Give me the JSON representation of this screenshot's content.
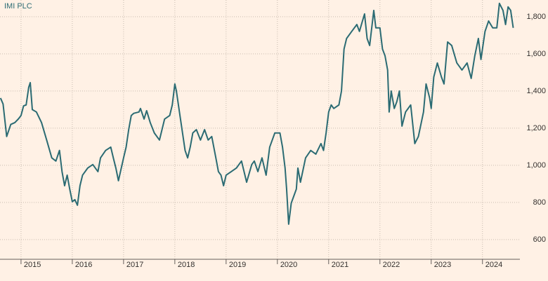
{
  "chart_data": {
    "type": "line",
    "title": "IMI PLC",
    "color": "#2b6b73",
    "grid": true,
    "xlim": [
      2014.59,
      2024.73
    ],
    "xticks": [
      2015,
      2016,
      2017,
      2018,
      2019,
      2020,
      2021,
      2022,
      2023,
      2024
    ],
    "ylim": [
      494,
      1890
    ],
    "yticks": [
      600,
      800,
      {
        "value": 1000,
        "label": "1,000"
      },
      {
        "value": 1200,
        "label": "1,200"
      },
      {
        "value": 1400,
        "label": "1,400"
      },
      {
        "value": 1600,
        "label": "1,600"
      },
      {
        "value": 1800,
        "label": "1,800"
      }
    ],
    "x": [
      2014.6,
      2014.65,
      2014.72,
      2014.8,
      2014.88,
      2014.95,
      2015.0,
      2015.05,
      2015.1,
      2015.15,
      2015.18,
      2015.22,
      2015.3,
      2015.4,
      2015.5,
      2015.6,
      2015.68,
      2015.75,
      2015.8,
      2015.85,
      2015.9,
      2015.95,
      2016.0,
      2016.05,
      2016.1,
      2016.15,
      2016.2,
      2016.3,
      2016.4,
      2016.5,
      2016.55,
      2016.65,
      2016.75,
      2016.8,
      2016.85,
      2016.9,
      2017.0,
      2017.05,
      2017.1,
      2017.15,
      2017.2,
      2017.3,
      2017.33,
      2017.4,
      2017.45,
      2017.52,
      2017.6,
      2017.7,
      2017.8,
      2017.9,
      2017.95,
      2018.0,
      2018.03,
      2018.1,
      2018.15,
      2018.2,
      2018.25,
      2018.3,
      2018.35,
      2018.42,
      2018.5,
      2018.58,
      2018.65,
      2018.72,
      2018.8,
      2018.85,
      2018.9,
      2018.95,
      2019.0,
      2019.1,
      2019.2,
      2019.3,
      2019.35,
      2019.4,
      2019.5,
      2019.55,
      2019.62,
      2019.7,
      2019.78,
      2019.85,
      2019.95,
      2020.05,
      2020.1,
      2020.15,
      2020.18,
      2020.22,
      2020.27,
      2020.32,
      2020.37,
      2020.4,
      2020.45,
      2020.55,
      2020.65,
      2020.75,
      2020.85,
      2020.9,
      2020.95,
      2021.0,
      2021.05,
      2021.1,
      2021.2,
      2021.25,
      2021.3,
      2021.35,
      2021.45,
      2021.55,
      2021.6,
      2021.7,
      2021.75,
      2021.8,
      2021.88,
      2021.92,
      2022.0,
      2022.05,
      2022.1,
      2022.15,
      2022.18,
      2022.22,
      2022.28,
      2022.33,
      2022.38,
      2022.43,
      2022.5,
      2022.6,
      2022.68,
      2022.75,
      2022.85,
      2022.9,
      2022.97,
      2023.0,
      2023.05,
      2023.12,
      2023.2,
      2023.25,
      2023.32,
      2023.4,
      2023.5,
      2023.6,
      2023.7,
      2023.78,
      2023.85,
      2023.92,
      2023.97,
      2024.05,
      2024.12,
      2024.2,
      2024.28,
      2024.33,
      2024.4,
      2024.45,
      2024.5,
      2024.55,
      2024.6
    ],
    "values": [
      1362,
      1330,
      1155,
      1220,
      1230,
      1250,
      1268,
      1320,
      1325,
      1420,
      1445,
      1300,
      1287,
      1230,
      1136,
      1040,
      1023,
      1080,
      966,
      890,
      947,
      872,
      804,
      815,
      785,
      890,
      947,
      985,
      1004,
      966,
      1040,
      1080,
      1098,
      1040,
      985,
      917,
      1040,
      1098,
      1192,
      1268,
      1280,
      1287,
      1306,
      1249,
      1294,
      1230,
      1174,
      1136,
      1249,
      1268,
      1325,
      1438,
      1400,
      1268,
      1174,
      1080,
      1040,
      1098,
      1174,
      1192,
      1136,
      1192,
      1136,
      1155,
      1040,
      966,
      947,
      890,
      947,
      966,
      985,
      1023,
      966,
      909,
      1004,
      1023,
      966,
      1040,
      947,
      1098,
      1174,
      1174,
      1098,
      985,
      872,
      683,
      796,
      834,
      872,
      985,
      909,
      1040,
      1080,
      1060,
      1117,
      1080,
      1174,
      1287,
      1325,
      1306,
      1325,
      1400,
      1626,
      1683,
      1721,
      1758,
      1721,
      1815,
      1683,
      1645,
      1834,
      1740,
      1740,
      1626,
      1589,
      1513,
      1287,
      1400,
      1306,
      1343,
      1400,
      1211,
      1287,
      1325,
      1117,
      1155,
      1287,
      1438,
      1362,
      1306,
      1475,
      1551,
      1475,
      1438,
      1664,
      1645,
      1551,
      1513,
      1551,
      1468,
      1589,
      1683,
      1570,
      1721,
      1777,
      1740,
      1740,
      1872,
      1834,
      1758,
      1853,
      1834,
      1740
    ]
  }
}
